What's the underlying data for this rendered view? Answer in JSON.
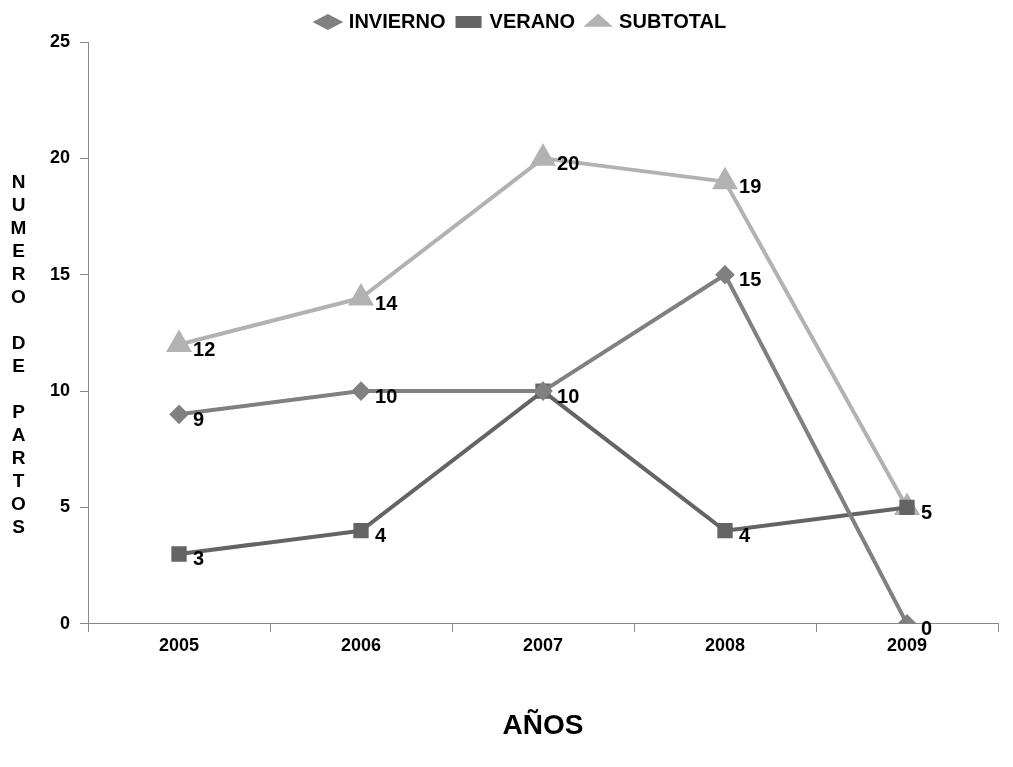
{
  "chart_data": {
    "type": "line",
    "xlabel": "AÑOS",
    "ylabel": "NUMERO DE PARTOS",
    "categories": [
      "2005",
      "2006",
      "2007",
      "2008",
      "2009"
    ],
    "series": [
      {
        "name": "INVIERNO",
        "color": "#808080",
        "marker": "diamond",
        "values": [
          9,
          10,
          10,
          15,
          0
        ],
        "value_labels": [
          "9",
          "10",
          null,
          "15",
          "0"
        ]
      },
      {
        "name": "VERANO",
        "color": "#646464",
        "marker": "square",
        "values": [
          3,
          4,
          10,
          4,
          5
        ],
        "value_labels": [
          "3",
          "4",
          "10",
          "4",
          "5"
        ]
      },
      {
        "name": "SUBTOTAL",
        "color": "#b2b2b2",
        "marker": "triangle",
        "values": [
          12,
          14,
          20,
          19,
          5
        ],
        "value_labels": [
          "12",
          "14",
          "20",
          "19",
          null
        ]
      }
    ],
    "ylim": [
      0,
      25
    ],
    "yticks": [
      0,
      5,
      10,
      15,
      20,
      25
    ],
    "grid": false,
    "legend": "top",
    "line_style": "solid"
  }
}
